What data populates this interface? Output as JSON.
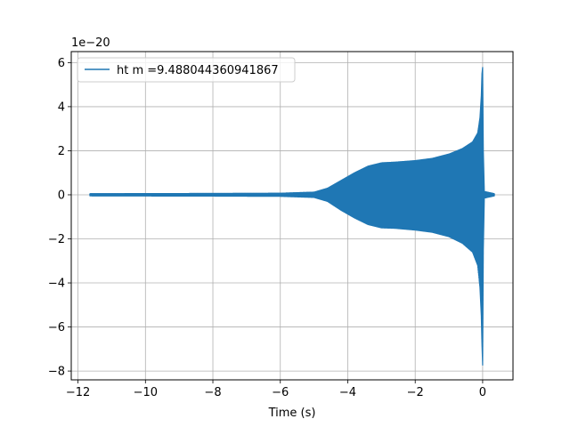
{
  "chart_data": {
    "type": "line",
    "title": "",
    "xlabel": "Time (s)",
    "ylabel": "",
    "offset_text": "1e−20",
    "xlim": [
      -12.2,
      0.9
    ],
    "ylim": [
      -8.4,
      6.5
    ],
    "xticks": [
      -12,
      -10,
      -8,
      -6,
      -4,
      -2,
      0
    ],
    "xtick_labels": [
      "−12",
      "−10",
      "−8",
      "−6",
      "−4",
      "−2",
      "0"
    ],
    "yticks": [
      -8,
      -6,
      -4,
      -2,
      0,
      2,
      4,
      6
    ],
    "ytick_labels": [
      "−8",
      "−6",
      "−4",
      "−2",
      "0",
      "2",
      "4",
      "6"
    ],
    "grid": true,
    "legend_position": "upper-left",
    "series": [
      {
        "name": "ht m =9.488044360941867",
        "color": "#1f77b4",
        "t_start": -11.65,
        "t_end": 0.35,
        "envelope_upper": [
          [
            -11.65,
            0.05
          ],
          [
            -8.0,
            0.06
          ],
          [
            -6.0,
            0.07
          ],
          [
            -5.0,
            0.12
          ],
          [
            -4.6,
            0.3
          ],
          [
            -4.2,
            0.65
          ],
          [
            -3.8,
            1.0
          ],
          [
            -3.4,
            1.3
          ],
          [
            -3.0,
            1.45
          ],
          [
            -2.6,
            1.48
          ],
          [
            -2.0,
            1.55
          ],
          [
            -1.5,
            1.65
          ],
          [
            -1.0,
            1.85
          ],
          [
            -0.6,
            2.1
          ],
          [
            -0.3,
            2.4
          ],
          [
            -0.15,
            2.8
          ],
          [
            -0.08,
            3.5
          ],
          [
            -0.04,
            4.5
          ],
          [
            -0.02,
            5.5
          ],
          [
            0.0,
            5.8
          ],
          [
            0.02,
            2.0
          ],
          [
            0.05,
            0.15
          ],
          [
            0.35,
            0.05
          ]
        ],
        "envelope_lower": [
          [
            -11.65,
            -0.05
          ],
          [
            -8.0,
            -0.06
          ],
          [
            -6.0,
            -0.07
          ],
          [
            -5.0,
            -0.12
          ],
          [
            -4.6,
            -0.3
          ],
          [
            -4.2,
            -0.7
          ],
          [
            -3.8,
            -1.05
          ],
          [
            -3.4,
            -1.35
          ],
          [
            -3.0,
            -1.5
          ],
          [
            -2.6,
            -1.52
          ],
          [
            -2.0,
            -1.6
          ],
          [
            -1.5,
            -1.7
          ],
          [
            -1.0,
            -1.9
          ],
          [
            -0.6,
            -2.2
          ],
          [
            -0.3,
            -2.6
          ],
          [
            -0.15,
            -3.2
          ],
          [
            -0.08,
            -4.2
          ],
          [
            -0.04,
            -5.5
          ],
          [
            -0.02,
            -6.8
          ],
          [
            0.0,
            -7.75
          ],
          [
            0.02,
            -2.5
          ],
          [
            0.05,
            -0.15
          ],
          [
            0.35,
            -0.05
          ]
        ]
      }
    ]
  }
}
